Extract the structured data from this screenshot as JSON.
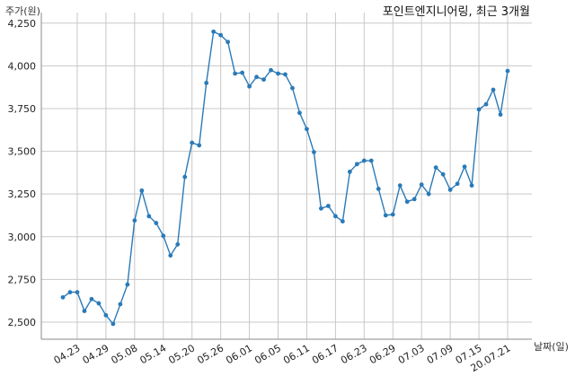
{
  "chart_data": {
    "type": "line",
    "title": "포인트엔지니어링, 최근 3개월",
    "ylabel": "주가(원)",
    "xlabel": "날짜(일)",
    "ylim": [
      2400,
      4270
    ],
    "yticks": [
      2500,
      2750,
      3000,
      3250,
      3500,
      3750,
      4000,
      4250
    ],
    "ytick_labels": [
      "2,500",
      "2,750",
      "3,000",
      "3,250",
      "3,500",
      "3,750",
      "4,000",
      "4,250"
    ],
    "xtick_labels": [
      "04.23",
      "04.29",
      "05.08",
      "05.14",
      "05.20",
      "05.26",
      "06.01",
      "06.05",
      "06.11",
      "06.17",
      "06.23",
      "06.29",
      "07.03",
      "07.09",
      "07.15",
      "20.07.21"
    ],
    "xtick_index": [
      2,
      6,
      10,
      14,
      18,
      22,
      26,
      30,
      34,
      38,
      42,
      46,
      50,
      54,
      58,
      62
    ],
    "grid": true,
    "color": "#2a7ab8",
    "series": [
      {
        "values": [
          2645,
          2675,
          2675,
          2565,
          2635,
          2610,
          2540,
          2490,
          2605,
          2720,
          3095,
          3270,
          3120,
          3080,
          3005,
          2890,
          2955,
          3350,
          3550,
          3535,
          3900,
          4200,
          4180,
          4140,
          3955,
          3960,
          3880,
          3935,
          3920,
          3975,
          3955,
          3950,
          3870,
          3725,
          3630,
          3495,
          3165,
          3180,
          3120,
          3090,
          3380,
          3425,
          3445,
          3445,
          3280,
          3125,
          3130,
          3300,
          3205,
          3220,
          3305,
          3250,
          3405,
          3365,
          3275,
          3310,
          3410,
          3300,
          3745,
          3775,
          3860,
          3715,
          3970
        ]
      }
    ]
  }
}
